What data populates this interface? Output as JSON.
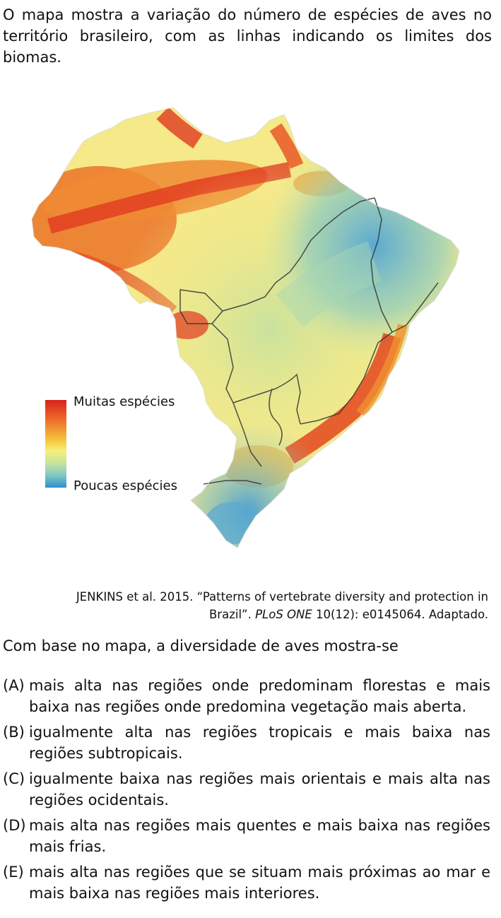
{
  "intro": "O mapa mostra a variação do número de espécies de aves no território brasileiro, com as linhas indicando os limites dos biomas.",
  "map": {
    "legend": {
      "high": "Muitas espécies",
      "low": "Poucas espécies"
    },
    "colors": {
      "high": "#d8231a",
      "mid": "#f6ef7a",
      "low": "#2f8ec9"
    }
  },
  "source": {
    "line1": "JENKINS et al. 2015. “Patterns of vertebrate diversity and protection in",
    "line2a": "Brazil”. ",
    "line2_italic": "PLoS ONE",
    "line2b": " 10(12): e0145064. Adaptado."
  },
  "question": "Com base no mapa, a diversidade de aves mostra-se",
  "options": [
    {
      "letter": "(A)",
      "text": "mais alta nas regiões onde predominam florestas e mais baixa nas regiões onde predomina vegetação mais aberta."
    },
    {
      "letter": "(B)",
      "text": "igualmente alta nas regiões tropicais e mais baixa nas regiões subtropicais."
    },
    {
      "letter": "(C)",
      "text": "igualmente baixa nas regiões mais orientais e mais alta nas regiões ocidentais."
    },
    {
      "letter": "(D)",
      "text": "mais alta nas regiões mais quentes e mais baixa nas regiões mais frias."
    },
    {
      "letter": "(E)",
      "text": "mais alta nas regiões que se situam mais próximas ao mar e mais baixa nas regiões mais interiores."
    }
  ]
}
